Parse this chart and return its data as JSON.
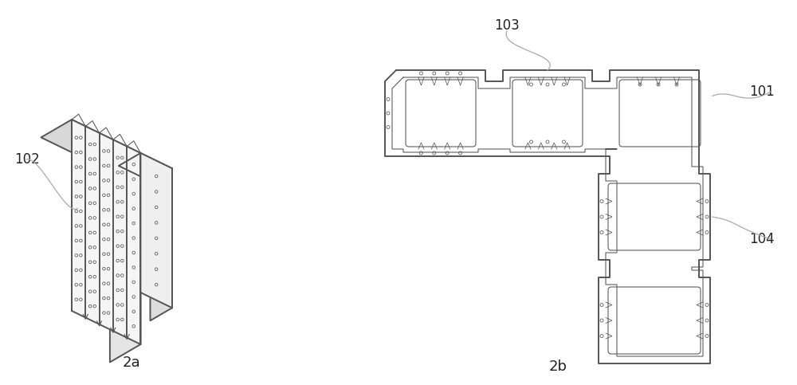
{
  "bg_color": "#ffffff",
  "lc": "#555555",
  "lc_d": "#222222",
  "lc_l": "#aaaaaa",
  "label_102": "102",
  "label_101": "101",
  "label_103": "103",
  "label_104": "104",
  "cap_2a": "2a",
  "cap_2b": "2b",
  "lbl_fs": 12,
  "cap_fs": 13,
  "fig_w": 10.0,
  "fig_h": 4.83,
  "dpi": 100,
  "lw_outer": 1.4,
  "lw_inner": 0.75,
  "lw_detail": 0.55
}
